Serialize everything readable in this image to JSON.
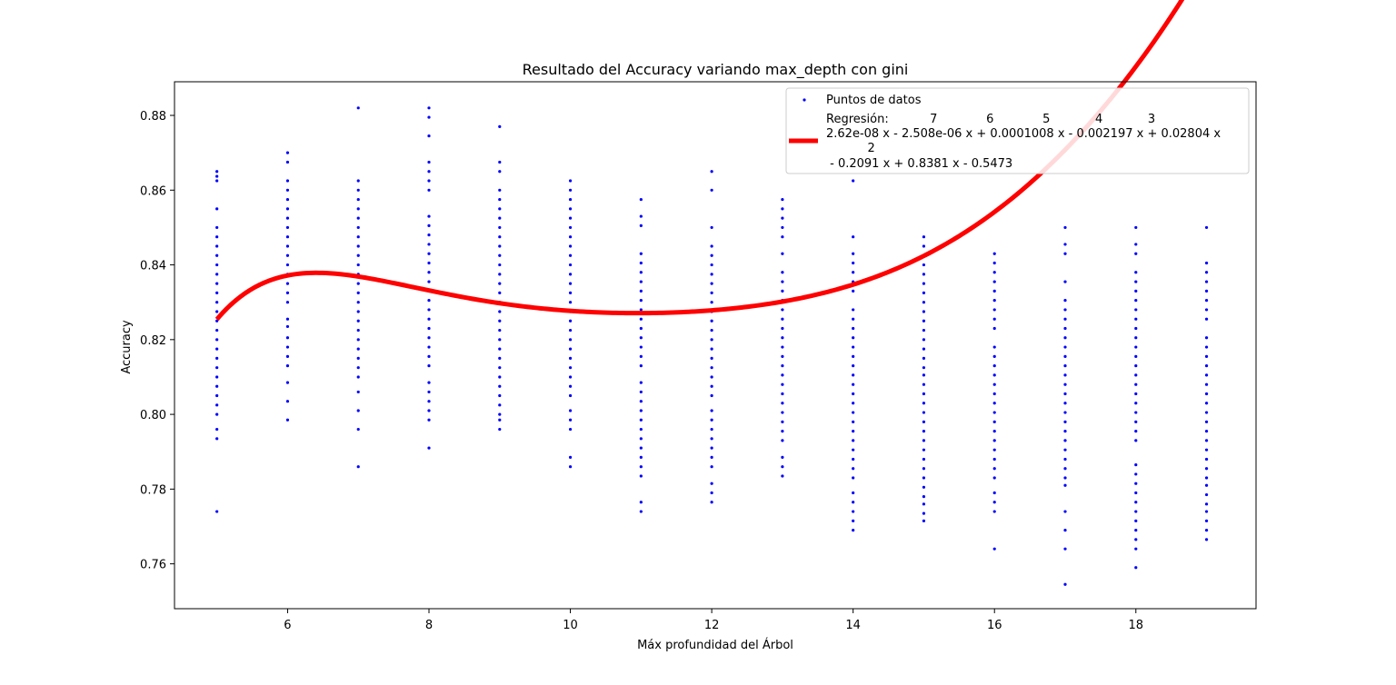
{
  "chart_data": {
    "type": "scatter",
    "title": "Resultado del Accuracy variando max_depth con gini",
    "xlabel": "Máx profundidad del Árbol",
    "ylabel": "Accuracy",
    "xlim": [
      4.4,
      19.7
    ],
    "ylim": [
      0.748,
      0.889
    ],
    "xticks": [
      6,
      8,
      10,
      12,
      14,
      16,
      18
    ],
    "xtick_labels": [
      "6",
      "8",
      "10",
      "12",
      "14",
      "16",
      "18"
    ],
    "yticks": [
      0.76,
      0.78,
      0.8,
      0.82,
      0.84,
      0.86,
      0.88
    ],
    "ytick_labels": [
      "0.76",
      "0.78",
      "0.80",
      "0.82",
      "0.84",
      "0.86",
      "0.88"
    ],
    "grid": false,
    "legend_position": "top-right",
    "colors": {
      "points": "#0000ff",
      "regression": "#ff0000"
    },
    "series": [
      {
        "name": "Puntos de datos",
        "kind": "scatter",
        "points": [
          {
            "x": 5,
            "ys": [
              0.865,
              0.8637,
              0.8625,
              0.855,
              0.85,
              0.8475,
              0.845,
              0.8425,
              0.84,
              0.8375,
              0.835,
              0.8325,
              0.83,
              0.8275,
              0.825,
              0.8225,
              0.82,
              0.8175,
              0.815,
              0.8125,
              0.81,
              0.8075,
              0.805,
              0.8025,
              0.8,
              0.796,
              0.7935,
              0.774
            ]
          },
          {
            "x": 6,
            "ys": [
              0.87,
              0.8675,
              0.8625,
              0.86,
              0.8575,
              0.855,
              0.8525,
              0.85,
              0.8475,
              0.845,
              0.8425,
              0.84,
              0.8375,
              0.835,
              0.8325,
              0.83,
              0.8255,
              0.8235,
              0.8205,
              0.818,
              0.8155,
              0.813,
              0.8085,
              0.8035,
              0.7985
            ]
          },
          {
            "x": 7,
            "ys": [
              0.882,
              0.8625,
              0.86,
              0.8575,
              0.855,
              0.8525,
              0.85,
              0.8475,
              0.845,
              0.8425,
              0.84,
              0.8375,
              0.835,
              0.8325,
              0.83,
              0.8275,
              0.825,
              0.8225,
              0.82,
              0.8175,
              0.815,
              0.8125,
              0.81,
              0.806,
              0.801,
              0.796,
              0.786
            ]
          },
          {
            "x": 8,
            "ys": [
              0.882,
              0.8795,
              0.8745,
              0.8675,
              0.865,
              0.8625,
              0.86,
              0.853,
              0.8505,
              0.848,
              0.8455,
              0.843,
              0.8405,
              0.838,
              0.8355,
              0.833,
              0.8305,
              0.828,
              0.8255,
              0.823,
              0.8205,
              0.818,
              0.8155,
              0.813,
              0.8085,
              0.806,
              0.8035,
              0.801,
              0.7985,
              0.791
            ]
          },
          {
            "x": 9,
            "ys": [
              0.877,
              0.8675,
              0.865,
              0.86,
              0.8575,
              0.855,
              0.8525,
              0.85,
              0.8475,
              0.845,
              0.8425,
              0.84,
              0.8375,
              0.835,
              0.8325,
              0.83,
              0.8275,
              0.825,
              0.8225,
              0.82,
              0.8175,
              0.815,
              0.8125,
              0.81,
              0.8075,
              0.805,
              0.8025,
              0.8,
              0.7985,
              0.796
            ]
          },
          {
            "x": 10,
            "ys": [
              0.8625,
              0.86,
              0.8575,
              0.855,
              0.8525,
              0.85,
              0.8475,
              0.845,
              0.8425,
              0.84,
              0.8375,
              0.835,
              0.8325,
              0.83,
              0.8275,
              0.825,
              0.8225,
              0.82,
              0.8175,
              0.815,
              0.8125,
              0.81,
              0.8075,
              0.805,
              0.801,
              0.7985,
              0.796,
              0.7885,
              0.786
            ]
          },
          {
            "x": 11,
            "ys": [
              0.8575,
              0.853,
              0.8505,
              0.843,
              0.8405,
              0.838,
              0.8355,
              0.833,
              0.8305,
              0.828,
              0.8255,
              0.823,
              0.8205,
              0.818,
              0.8155,
              0.813,
              0.8085,
              0.806,
              0.8035,
              0.801,
              0.7985,
              0.796,
              0.7935,
              0.791,
              0.7885,
              0.786,
              0.7835,
              0.7765,
              0.774
            ]
          },
          {
            "x": 12,
            "ys": [
              0.865,
              0.86,
              0.85,
              0.845,
              0.8425,
              0.84,
              0.8375,
              0.835,
              0.8325,
              0.83,
              0.8275,
              0.825,
              0.8225,
              0.82,
              0.8175,
              0.815,
              0.8125,
              0.81,
              0.8075,
              0.805,
              0.801,
              0.7985,
              0.796,
              0.7935,
              0.791,
              0.7885,
              0.786,
              0.7815,
              0.779,
              0.7765
            ]
          },
          {
            "x": 13,
            "ys": [
              0.8575,
              0.855,
              0.8525,
              0.85,
              0.8475,
              0.843,
              0.838,
              0.8355,
              0.833,
              0.8305,
              0.828,
              0.8255,
              0.823,
              0.8205,
              0.818,
              0.8155,
              0.813,
              0.8105,
              0.808,
              0.8055,
              0.803,
              0.8005,
              0.798,
              0.7955,
              0.793,
              0.7885,
              0.786,
              0.7835
            ]
          },
          {
            "x": 14,
            "ys": [
              0.8625,
              0.8475,
              0.843,
              0.8405,
              0.838,
              0.8355,
              0.833,
              0.828,
              0.8255,
              0.823,
              0.8205,
              0.818,
              0.8155,
              0.813,
              0.8105,
              0.808,
              0.8055,
              0.803,
              0.8005,
              0.798,
              0.7955,
              0.793,
              0.7905,
              0.788,
              0.7855,
              0.783,
              0.779,
              0.7765,
              0.774,
              0.7715,
              0.769
            ]
          },
          {
            "x": 15,
            "ys": [
              0.8475,
              0.845,
              0.8425,
              0.84,
              0.8375,
              0.835,
              0.8325,
              0.83,
              0.8275,
              0.825,
              0.8225,
              0.82,
              0.8175,
              0.815,
              0.8125,
              0.8105,
              0.808,
              0.8055,
              0.803,
              0.8005,
              0.798,
              0.7955,
              0.793,
              0.7905,
              0.788,
              0.7855,
              0.783,
              0.7805,
              0.778,
              0.776,
              0.7735,
              0.7715
            ]
          },
          {
            "x": 16,
            "ys": [
              0.843,
              0.8405,
              0.838,
              0.8355,
              0.833,
              0.8305,
              0.828,
              0.8255,
              0.823,
              0.818,
              0.8155,
              0.813,
              0.8105,
              0.808,
              0.8055,
              0.803,
              0.8005,
              0.798,
              0.7955,
              0.793,
              0.7905,
              0.788,
              0.7855,
              0.783,
              0.779,
              0.7765,
              0.774,
              0.764
            ]
          },
          {
            "x": 17,
            "ys": [
              0.85,
              0.8455,
              0.843,
              0.8355,
              0.8305,
              0.828,
              0.8255,
              0.823,
              0.8205,
              0.818,
              0.8155,
              0.813,
              0.8105,
              0.808,
              0.8055,
              0.803,
              0.8005,
              0.798,
              0.7955,
              0.793,
              0.7905,
              0.788,
              0.7855,
              0.783,
              0.781,
              0.774,
              0.769,
              0.764,
              0.7545
            ]
          },
          {
            "x": 18,
            "ys": [
              0.85,
              0.8455,
              0.843,
              0.838,
              0.8355,
              0.833,
              0.8305,
              0.828,
              0.8255,
              0.823,
              0.8205,
              0.818,
              0.8155,
              0.813,
              0.8105,
              0.808,
              0.8055,
              0.803,
              0.8005,
              0.798,
              0.7955,
              0.793,
              0.7865,
              0.784,
              0.7815,
              0.779,
              0.7765,
              0.774,
              0.7715,
              0.769,
              0.7665,
              0.764,
              0.759
            ]
          },
          {
            "x": 19,
            "ys": [
              0.85,
              0.8405,
              0.838,
              0.8355,
              0.833,
              0.8305,
              0.828,
              0.8255,
              0.8205,
              0.818,
              0.8155,
              0.813,
              0.8105,
              0.808,
              0.8055,
              0.803,
              0.8005,
              0.798,
              0.7955,
              0.793,
              0.7905,
              0.788,
              0.7855,
              0.783,
              0.781,
              0.7785,
              0.776,
              0.774,
              0.7715,
              0.769,
              0.7665
            ]
          }
        ]
      },
      {
        "name": "Regresión",
        "kind": "polynomial-line",
        "coefficients": [
          2.62e-08,
          -2.508e-06,
          0.0001008,
          -0.002197,
          0.02804,
          -0.2091,
          0.8381,
          -0.5473
        ],
        "x_range": [
          5,
          19
        ]
      }
    ],
    "legend": {
      "scatter_label": "Puntos de datos",
      "regression_lines": [
        "Regresión:           7             6             5            4            3",
        "2.62e-08 x - 2.508e-06 x + 0.0001008 x - 0.002197 x + 0.02804 x",
        "           2",
        " - 0.2091 x + 0.8381 x - 0.5473"
      ]
    }
  }
}
